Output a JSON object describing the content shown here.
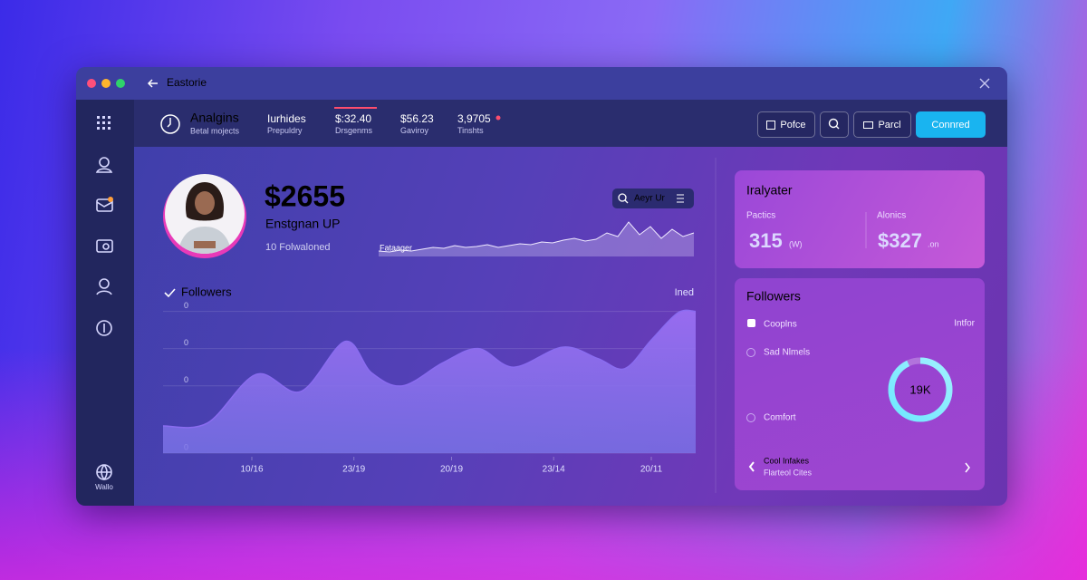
{
  "window": {
    "title": "Eastorie"
  },
  "sidebar": {
    "footer": "Wallo"
  },
  "header": {
    "title": "Analgins",
    "subtitle": "Betal mojects",
    "stats": [
      {
        "value": "Iurhides",
        "label": "Prepuldry"
      },
      {
        "value": "$:32.40",
        "label": "Drsgenms"
      },
      {
        "value": "$56.23",
        "label": "Gaviroy"
      },
      {
        "value": "3,9705",
        "label": "Tinshts"
      }
    ],
    "buttons": [
      "Pofce",
      "Parcl",
      "Connred"
    ]
  },
  "profile": {
    "amount": "$2655",
    "name": "Enstgnan UP",
    "followers": "10 Folwaloned"
  },
  "sparkline": {
    "search": "Aeyr Ur",
    "label": "Fataager",
    "ylim": [
      0,
      40
    ],
    "values": [
      6,
      5,
      7,
      6,
      8,
      10,
      9,
      12,
      10,
      11,
      13,
      10,
      12,
      14,
      13,
      16,
      15,
      18,
      20,
      17,
      19,
      26,
      22,
      38,
      24,
      33,
      20,
      30,
      22,
      26
    ]
  },
  "chart_data": {
    "type": "area",
    "title": "Followers",
    "note": "Ined",
    "color": "#8a6cf0",
    "x": [
      0,
      1,
      2.1,
      3.1,
      4.1,
      4.7,
      5.4,
      6.3,
      7.1,
      7.9,
      9,
      9.8,
      10.4,
      11,
      11.6,
      12
    ],
    "values": [
      19,
      21,
      55,
      43,
      78,
      56,
      47,
      63,
      73,
      60,
      74,
      66,
      59,
      79,
      98,
      99
    ],
    "xlim": [
      0,
      12
    ],
    "ylim": [
      0,
      100
    ],
    "xticks": [
      {
        "value": 2,
        "label": "10/16"
      },
      {
        "value": 4.3,
        "label": "23/19"
      },
      {
        "value": 6.5,
        "label": "20/19"
      },
      {
        "value": 8.8,
        "label": "23/14"
      },
      {
        "value": 11,
        "label": "20/11"
      }
    ],
    "yticks": [
      {
        "value": 0,
        "label": "0"
      },
      {
        "value": 47,
        "label": "0"
      },
      {
        "value": 73,
        "label": "0"
      },
      {
        "value": 99,
        "label": "0"
      }
    ],
    "grid": true
  },
  "summary_card": {
    "title": "Iralyater",
    "metrics": [
      {
        "label": "Pactics",
        "value": "315",
        "unit": "(W)"
      },
      {
        "label": "Alonics",
        "value": "$327",
        "unit": ".on"
      }
    ]
  },
  "followers_card": {
    "title": "Followers",
    "legend": [
      "Cooplns",
      "Sad Nlmels",
      "Comfort"
    ],
    "note": "Intfor",
    "ring": {
      "label": "19K",
      "percent": 93
    },
    "footer": {
      "title": "Cool Infakes",
      "subtitle": "Flarteol Cites"
    }
  }
}
